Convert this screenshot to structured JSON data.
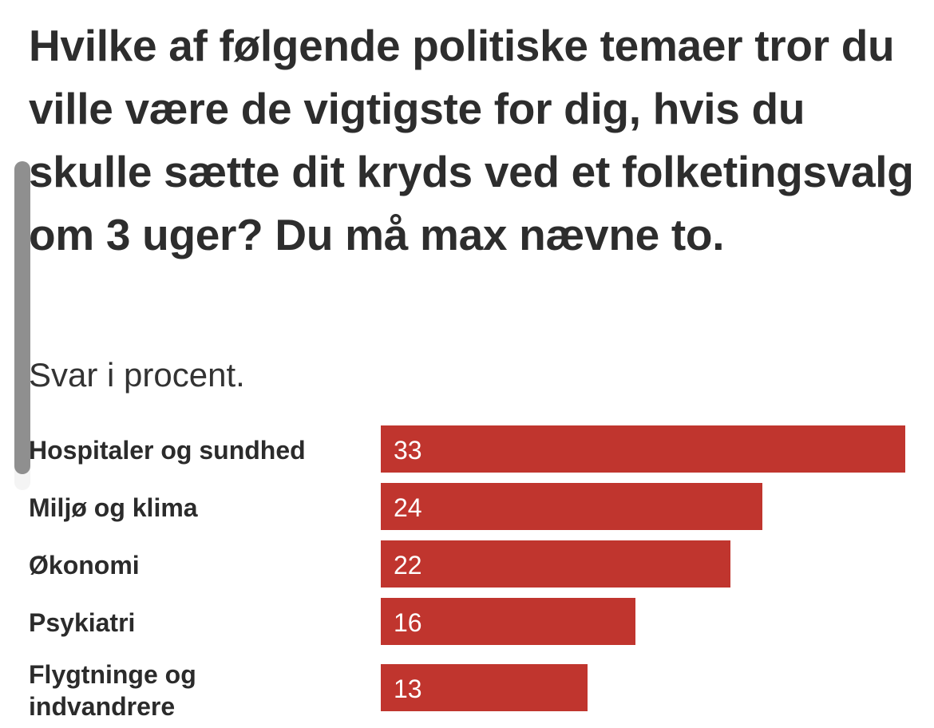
{
  "title": "Hvilke af følgende politiske temaer tror du ville være de vigtigste for dig, hvis du skulle sætte dit kryds ved et folketingsvalg om 3 uger? Du må max nævne to.",
  "subtitle": "Svar i procent.",
  "colors": {
    "bar": "#c0352e",
    "text": "#2b2b2b",
    "bar_label": "#ffffff"
  },
  "chart_data": {
    "type": "bar",
    "orientation": "horizontal",
    "title": "Hvilke af følgende politiske temaer tror du ville være de vigtigste for dig, hvis du skulle sætte dit kryds ved et folketingsvalg om 3 uger? Du må max nævne to.",
    "subtitle": "Svar i procent.",
    "categories": [
      "Hospitaler og sundhed",
      "Miljø og klima",
      "Økonomi",
      "Psykiatri",
      "Flygtninge og indvandrere"
    ],
    "values": [
      33,
      24,
      22,
      16,
      13
    ],
    "value_labels": [
      "33",
      "24",
      "22",
      "16",
      "13"
    ],
    "xlabel": "",
    "ylabel": "",
    "xlim": [
      0,
      33
    ],
    "grid": false,
    "legend": "none",
    "data_labels": "inside-left"
  }
}
